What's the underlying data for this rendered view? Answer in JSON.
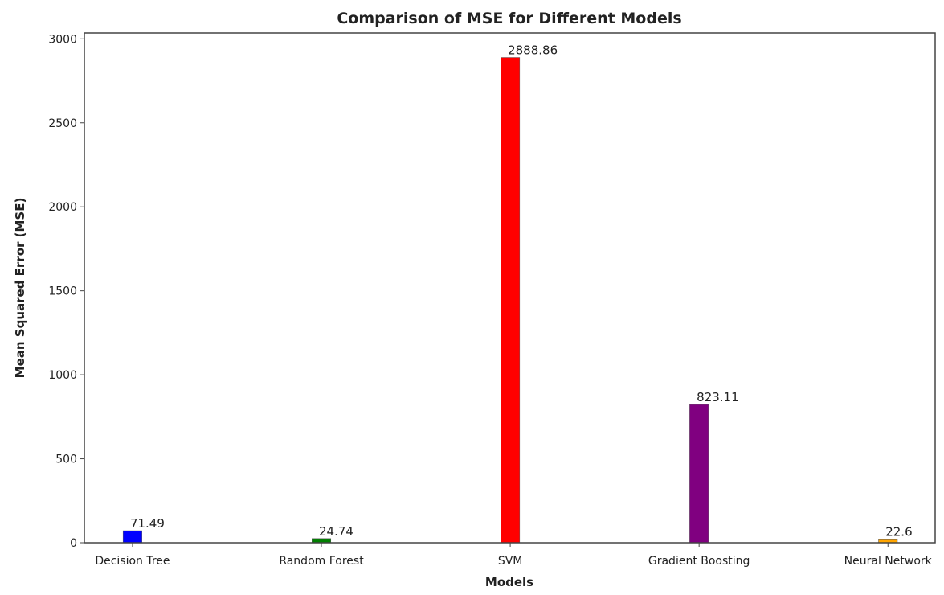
{
  "chart_data": {
    "type": "bar",
    "title": "Comparison of MSE for Different Models",
    "xlabel": "Models",
    "ylabel": "Mean Squared Error (MSE)",
    "categories": [
      "Decision Tree",
      "Random Forest",
      "SVM",
      "Gradient Boosting",
      "Neural Network"
    ],
    "values": [
      71.49,
      24.74,
      2888.86,
      823.11,
      22.6
    ],
    "data_labels": [
      "71.49",
      "24.74",
      "2888.86",
      "823.11",
      "22.6"
    ],
    "colors": [
      "#0000ff",
      "#008000",
      "#ff0000",
      "#800080",
      "#ffa500"
    ],
    "ylim": [
      0,
      3035
    ],
    "yticks": [
      0,
      500,
      1000,
      1500,
      2000,
      2500,
      3000
    ],
    "grid": false,
    "legend": "none"
  }
}
